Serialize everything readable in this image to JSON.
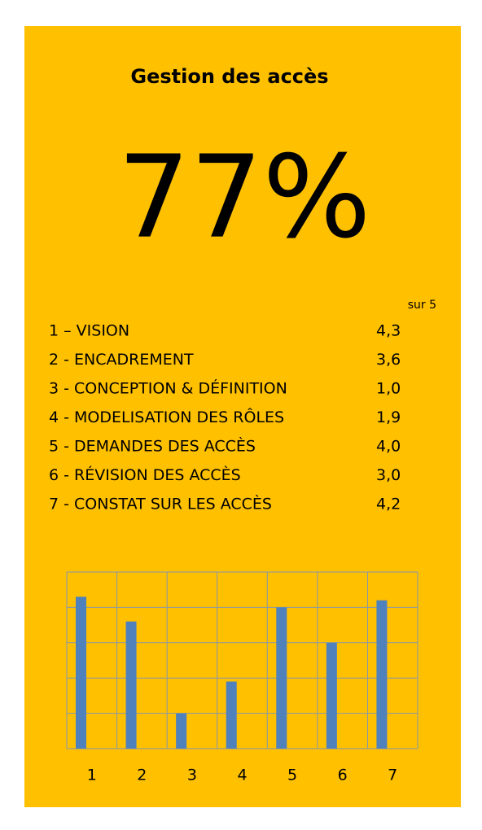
{
  "title": "Gestion des accès",
  "score": "77%",
  "scores": {
    "note": "sur 5",
    "items": [
      "1 – VISION",
      "2 - ENCADREMENT",
      "3 - CONCEPTION & DÉFINITION",
      "4 - MODELISATION DES RÔLES",
      "5 - DEMANDES DES ACCÈS",
      "6 - RÉVISION DES ACCÈS",
      "7 - CONSTAT SUR LES ACCÈS"
    ]
  },
  "chart_data": {
    "type": "bar",
    "categories": [
      "1",
      "2",
      "3",
      "4",
      "5",
      "6",
      "7"
    ],
    "values": [
      4.3,
      3.6,
      1.0,
      1.9,
      4.0,
      3.0,
      4.2
    ],
    "value_labels": [
      "4,3",
      "3,6",
      "1,0",
      "1,9",
      "4,0",
      "3,0",
      "4,2"
    ],
    "color": "#4f81bd",
    "ylim": [
      0,
      5
    ],
    "yticks": [
      0,
      1,
      2,
      3,
      4,
      5
    ],
    "grid": true
  }
}
